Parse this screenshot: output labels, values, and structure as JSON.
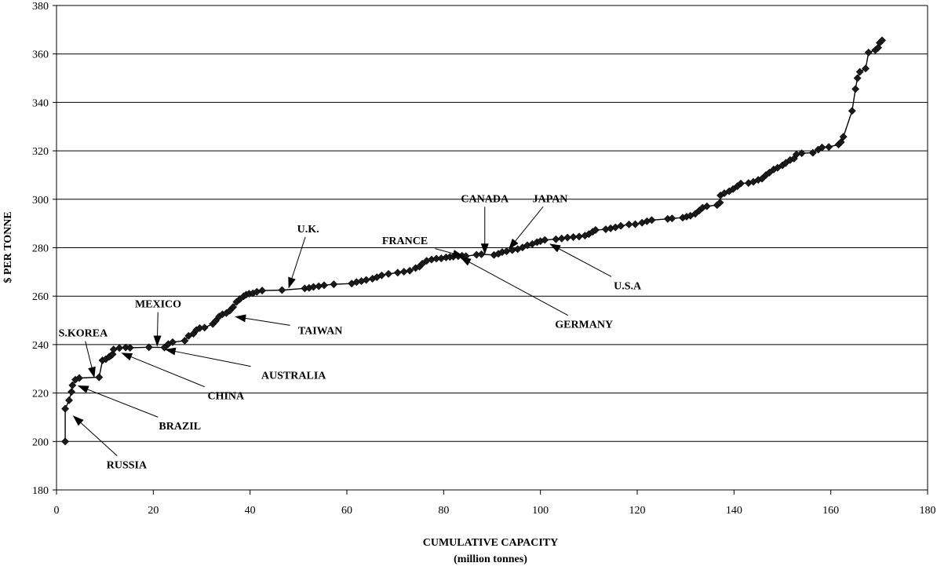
{
  "chart_data": {
    "type": "line",
    "title": "",
    "xlabel": "CUMULATIVE CAPACITY",
    "xlabel_sub": "(million tonnes)",
    "ylabel": "$ PER TONNE",
    "xlim": [
      0,
      180
    ],
    "ylim": [
      180,
      380
    ],
    "xticks": [
      0,
      20,
      40,
      60,
      80,
      100,
      120,
      140,
      160,
      180
    ],
    "yticks": [
      180,
      200,
      220,
      240,
      260,
      280,
      300,
      320,
      340,
      360,
      380
    ],
    "grid": "horizontal",
    "legend": "none",
    "colors": {
      "line": "#000000",
      "marker": "#1a1a1a",
      "grid": "#000000"
    },
    "series": [
      {
        "marker": "diamond",
        "points": [
          [
            1.8,
            200
          ],
          [
            1.8,
            213.5
          ],
          [
            2.6,
            217
          ],
          [
            3.1,
            220.5
          ],
          [
            3.3,
            223.2
          ],
          [
            3.9,
            225.5
          ],
          [
            4.7,
            226.2
          ],
          [
            8.8,
            226.5
          ],
          [
            9.5,
            233.5
          ],
          [
            10.2,
            234
          ],
          [
            10.9,
            235
          ],
          [
            11.3,
            235.5
          ],
          [
            11.6,
            236
          ],
          [
            11.8,
            238
          ],
          [
            13,
            238.6
          ],
          [
            14.3,
            238.8
          ],
          [
            15.2,
            238.7
          ],
          [
            19.1,
            238.9
          ],
          [
            22.3,
            238.8
          ],
          [
            23.1,
            240.2
          ],
          [
            24,
            241
          ],
          [
            26.5,
            241.6
          ],
          [
            27.3,
            243.6
          ],
          [
            28.3,
            244.5
          ],
          [
            28.9,
            246
          ],
          [
            29.6,
            246.8
          ],
          [
            30.6,
            247
          ],
          [
            32.3,
            248.5
          ],
          [
            32.9,
            249.8
          ],
          [
            33.6,
            251.6
          ],
          [
            34.3,
            252.5
          ],
          [
            35.1,
            253
          ],
          [
            35.8,
            254
          ],
          [
            36.5,
            255.5
          ],
          [
            37.2,
            257.6
          ],
          [
            37.9,
            258.8
          ],
          [
            38.7,
            260
          ],
          [
            39.2,
            260.6
          ],
          [
            39.8,
            261
          ],
          [
            40.6,
            261.2
          ],
          [
            41.4,
            261.8
          ],
          [
            42.5,
            262.3
          ],
          [
            46.6,
            262.5
          ],
          [
            51.3,
            263.2
          ],
          [
            52.2,
            263.4
          ],
          [
            53.1,
            263.8
          ],
          [
            54.2,
            264.1
          ],
          [
            55.3,
            264.5
          ],
          [
            57.3,
            264.9
          ],
          [
            61,
            265.2
          ],
          [
            62,
            265.8
          ],
          [
            63,
            266.2
          ],
          [
            64,
            266.7
          ],
          [
            65.3,
            267.2
          ],
          [
            66.2,
            267.8
          ],
          [
            67.2,
            268.6
          ],
          [
            68.6,
            269.2
          ],
          [
            70.5,
            269.7
          ],
          [
            71.8,
            270.1
          ],
          [
            73,
            270.5
          ],
          [
            74.2,
            271.6
          ],
          [
            75,
            272.2
          ],
          [
            75.6,
            273.4
          ],
          [
            76.5,
            274.6
          ],
          [
            77.5,
            275.1
          ],
          [
            78.5,
            275.5
          ],
          [
            79.5,
            275.6
          ],
          [
            80.5,
            276
          ],
          [
            81.3,
            276.2
          ],
          [
            82,
            276.3
          ],
          [
            83,
            276.5
          ],
          [
            83.8,
            276.7
          ],
          [
            84.6,
            276.5
          ],
          [
            86.8,
            277.1
          ],
          [
            87.8,
            277.3
          ],
          [
            90.4,
            277
          ],
          [
            91.3,
            277.5
          ],
          [
            92.1,
            278.2
          ],
          [
            93,
            278.5
          ],
          [
            94.2,
            279
          ],
          [
            95.3,
            279.4
          ],
          [
            96.3,
            280.1
          ],
          [
            97.3,
            281
          ],
          [
            98.3,
            281.5
          ],
          [
            99.3,
            282.3
          ],
          [
            100,
            282.7
          ],
          [
            100.9,
            283.2
          ],
          [
            103.2,
            283.5
          ],
          [
            104.4,
            283.8
          ],
          [
            105.6,
            284.2
          ],
          [
            106.8,
            284.4
          ],
          [
            108,
            284.6
          ],
          [
            109.2,
            285
          ],
          [
            110,
            285.6
          ],
          [
            110.8,
            286.6
          ],
          [
            111.4,
            287.3
          ],
          [
            113.5,
            287.6
          ],
          [
            114.5,
            288
          ],
          [
            115.5,
            288.4
          ],
          [
            116.6,
            289
          ],
          [
            118.3,
            289.6
          ],
          [
            119.6,
            289.7
          ],
          [
            121,
            290.3
          ],
          [
            122,
            290.9
          ],
          [
            123,
            291.4
          ],
          [
            126.3,
            291.9
          ],
          [
            127.2,
            292.1
          ],
          [
            129.4,
            292.4
          ],
          [
            130.2,
            292.8
          ],
          [
            131,
            293.2
          ],
          [
            132,
            294
          ],
          [
            132.8,
            295.3
          ],
          [
            133.5,
            296.5
          ],
          [
            134.4,
            297.1
          ],
          [
            136.5,
            297.6
          ],
          [
            137.1,
            298.6
          ],
          [
            137.2,
            301.6
          ],
          [
            138,
            302.5
          ],
          [
            139,
            303.3
          ],
          [
            139.8,
            304.2
          ],
          [
            140.7,
            305.4
          ],
          [
            141.4,
            306.5
          ],
          [
            143,
            306.7
          ],
          [
            144,
            307.2
          ],
          [
            145,
            308
          ],
          [
            145.8,
            308.5
          ],
          [
            146.6,
            310
          ],
          [
            147.3,
            311
          ],
          [
            148.2,
            312.3
          ],
          [
            149,
            313
          ],
          [
            150,
            314
          ],
          [
            150.7,
            315
          ],
          [
            151.6,
            316.2
          ],
          [
            152.4,
            316.8
          ],
          [
            152.9,
            318.5
          ],
          [
            154,
            319
          ],
          [
            156.3,
            319.2
          ],
          [
            157.4,
            320.5
          ],
          [
            158.2,
            321.4
          ],
          [
            159.6,
            321.6
          ],
          [
            161.6,
            322.6
          ],
          [
            162.1,
            323.6
          ],
          [
            162.6,
            325.8
          ],
          [
            164.4,
            336.5
          ],
          [
            165.1,
            345.5
          ],
          [
            165.5,
            350
          ],
          [
            166,
            352.6
          ],
          [
            167.2,
            354
          ],
          [
            167.8,
            360.6
          ],
          [
            169.2,
            361.6
          ],
          [
            169.8,
            362.6
          ],
          [
            170.1,
            364.6
          ],
          [
            170.6,
            365.6
          ]
        ]
      }
    ],
    "annotations": [
      {
        "label": "RUSSIA",
        "x": 3.5,
        "y": 210.5,
        "text_x": 14.5,
        "text_y": 190.5
      },
      {
        "label": "BRAZIL",
        "x": 4.5,
        "y": 223,
        "text_x": 25.5,
        "text_y": 206.5
      },
      {
        "label": "S.KOREA",
        "x": 7.8,
        "y": 226.5,
        "text_x": 5.5,
        "text_y": 245
      },
      {
        "label": "CHINA",
        "x": 13.5,
        "y": 236.5,
        "text_x": 35,
        "text_y": 219
      },
      {
        "label": "AUSTRALIA",
        "x": 22.5,
        "y": 238,
        "text_x": 49,
        "text_y": 227.5
      },
      {
        "label": "MEXICO",
        "x": 20.8,
        "y": 239.5,
        "text_x": 21,
        "text_y": 257
      },
      {
        "label": "TAIWAN",
        "x": 37,
        "y": 251.5,
        "text_x": 54.5,
        "text_y": 246
      },
      {
        "label": "U.K.",
        "x": 48,
        "y": 263.5,
        "text_x": 52,
        "text_y": 288
      },
      {
        "label": "FRANCE",
        "x": 84,
        "y": 276.5,
        "text_x": 72,
        "text_y": 283
      },
      {
        "label": "CANADA",
        "x": 88.5,
        "y": 277.5,
        "text_x": 88.5,
        "text_y": 300.5
      },
      {
        "label": "JAPAN",
        "x": 93.5,
        "y": 279.5,
        "text_x": 102,
        "text_y": 300.5
      },
      {
        "label": "GERMANY",
        "x": 83.5,
        "y": 276,
        "text_x": 109,
        "text_y": 248.5
      },
      {
        "label": "U.S.A",
        "x": 102,
        "y": 281.5,
        "text_x": 118,
        "text_y": 264.5
      }
    ]
  }
}
